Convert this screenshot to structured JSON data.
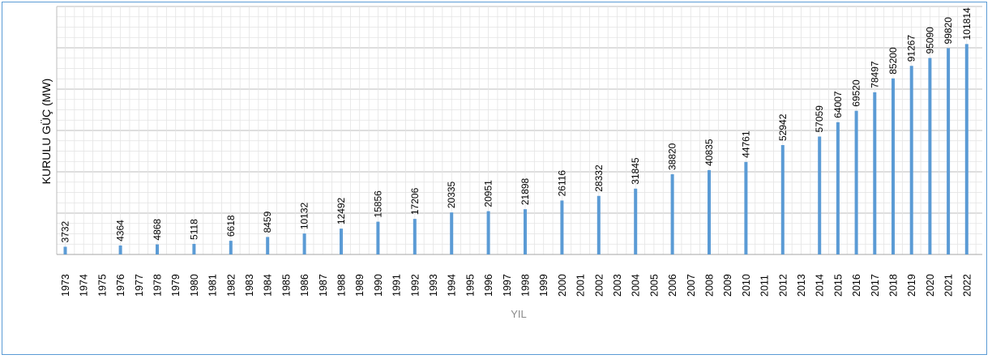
{
  "chart_data": {
    "type": "bar",
    "title": "",
    "xlabel": "YIL",
    "ylabel": "KURULU GÜÇ (MW)",
    "ylim": [
      0,
      120000
    ],
    "grid": true,
    "bar_color": "#5b9bd5",
    "categories": [
      "1973",
      "1974",
      "1975",
      "1976",
      "1977",
      "1978",
      "1979",
      "1980",
      "1981",
      "1982",
      "1983",
      "1984",
      "1985",
      "1986",
      "1987",
      "1988",
      "1989",
      "1990",
      "1991",
      "1992",
      "1993",
      "1994",
      "1995",
      "1996",
      "1997",
      "1998",
      "1999",
      "2000",
      "2001",
      "2002",
      "2003",
      "2004",
      "2005",
      "2006",
      "2007",
      "2008",
      "2009",
      "2010",
      "2011",
      "2012",
      "2013",
      "2014",
      "2015",
      "2016",
      "2017",
      "2018",
      "2019",
      "2020",
      "2021",
      "2022"
    ],
    "values": [
      3732,
      null,
      null,
      4364,
      null,
      4868,
      null,
      5118,
      null,
      6618,
      null,
      8459,
      null,
      10132,
      null,
      12492,
      null,
      15856,
      null,
      17206,
      null,
      20335,
      null,
      20951,
      null,
      21898,
      null,
      26116,
      null,
      28332,
      null,
      31845,
      null,
      38820,
      null,
      40835,
      null,
      44761,
      null,
      52942,
      null,
      57059,
      64007,
      69520,
      78497,
      85200,
      91267,
      95090,
      99820,
      101814
    ]
  }
}
